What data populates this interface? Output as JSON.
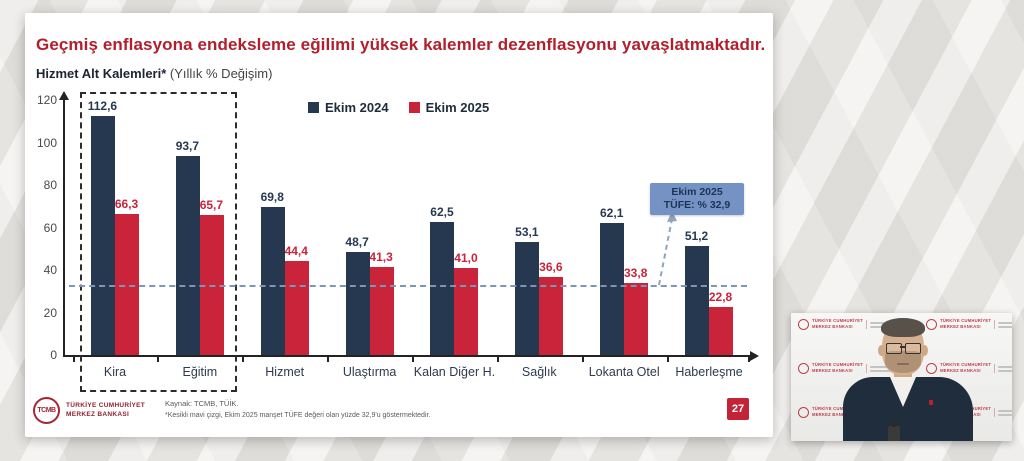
{
  "slide": {
    "title": "Geçmiş enflasyona endeksleme eğilimi yüksek kalemler dezenflasyonu yavaşlatmaktadır.",
    "subtitle_bold": "Hizmet Alt Kalemleri*",
    "subtitle_rest": " (Yıllık % Değişim)",
    "source": "Kaynak: TCMB, TÜİK.",
    "footnote": "*Kesikli mavi çizgi, Ekim 2025 manşet TÜFE değeri olan yüzde 32,9'u göstermektedir.",
    "page_number": "27",
    "logo": {
      "monogram": "TCMB",
      "org_line1": "TÜRKİYE CUMHURİYET",
      "org_line2": "MERKEZ BANKASI"
    }
  },
  "chart_data": {
    "type": "bar",
    "title": "Hizmet Alt Kalemleri* (Yıllık % Değişim)",
    "categories": [
      "Kira",
      "Eğitim",
      "Hizmet",
      "Ulaştırma",
      "Kalan Diğer H.",
      "Sağlık",
      "Lokanta Otel",
      "Haberleşme"
    ],
    "series": [
      {
        "name": "Ekim 2024",
        "color": "#263850",
        "values": [
          112.6,
          93.7,
          69.8,
          48.7,
          62.5,
          53.1,
          62.1,
          51.2
        ],
        "labels": [
          "112,6",
          "93,7",
          "69,8",
          "48,7",
          "62,5",
          "53,1",
          "62,1",
          "51,2"
        ]
      },
      {
        "name": "Ekim 2025",
        "color": "#c9243a",
        "values": [
          66.3,
          65.7,
          44.4,
          41.3,
          41.0,
          36.6,
          33.8,
          22.8
        ],
        "labels": [
          "66,3",
          "65,7",
          "44,4",
          "41,3",
          "41,0",
          "36,6",
          "33,8",
          "22,8"
        ]
      }
    ],
    "y_ticks": [
      0,
      20,
      40,
      60,
      80,
      100,
      120
    ],
    "ylim": [
      0,
      120
    ],
    "grid": false,
    "legend_position": "top",
    "threshold": {
      "value": 32.9,
      "label_line1": "Ekim 2025",
      "label_line2": "TÜFE: % 32,9",
      "line_color": "#7e96b5"
    },
    "highlight_categories": [
      "Kira",
      "Eğitim"
    ]
  },
  "video": {
    "backdrop_line1": "TÜRKİYE CUMHURİYET",
    "backdrop_line2": "MERKEZ BANKASI"
  },
  "colors": {
    "title_red": "#b01f2b",
    "navy": "#263850",
    "red": "#c9243a",
    "annotation_bg": "#7493c4",
    "annotation_text": "#1d3357",
    "badge_red": "#c22337",
    "logo_red": "#a62533"
  }
}
